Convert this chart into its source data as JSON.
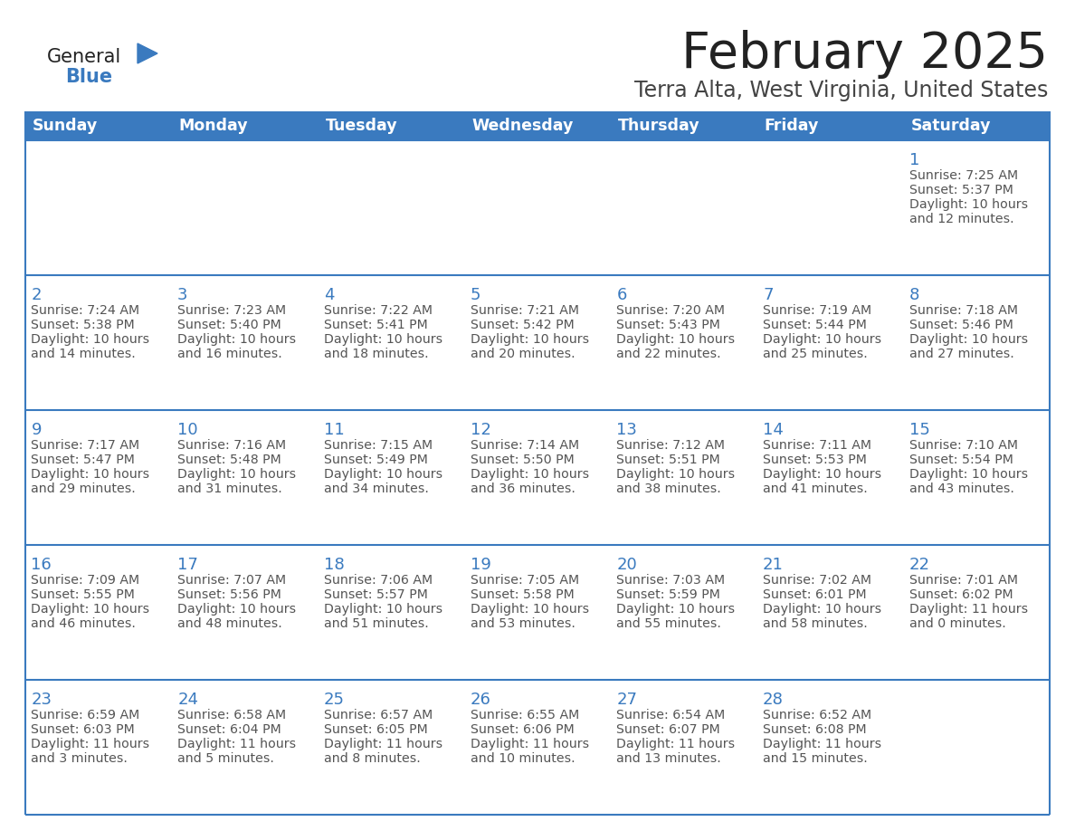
{
  "title": "February 2025",
  "subtitle": "Terra Alta, West Virginia, United States",
  "days_of_week": [
    "Sunday",
    "Monday",
    "Tuesday",
    "Wednesday",
    "Thursday",
    "Friday",
    "Saturday"
  ],
  "header_bg": "#3a7abf",
  "header_text": "#ffffff",
  "cell_bg": "#ffffff",
  "cell_border": "#3a7abf",
  "day_number_color": "#3a7abf",
  "info_text_color": "#555555",
  "title_color": "#222222",
  "subtitle_color": "#444444",
  "logo_general_color": "#222222",
  "logo_blue_color": "#3a7abf",
  "fig_width": 11.88,
  "fig_height": 9.18,
  "dpi": 100,
  "calendar_data": [
    [
      null,
      null,
      null,
      null,
      null,
      null,
      {
        "day": 1,
        "sunrise": "7:25 AM",
        "sunset": "5:37 PM",
        "daylight": "10 hours\nand 12 minutes."
      }
    ],
    [
      {
        "day": 2,
        "sunrise": "7:24 AM",
        "sunset": "5:38 PM",
        "daylight": "10 hours\nand 14 minutes."
      },
      {
        "day": 3,
        "sunrise": "7:23 AM",
        "sunset": "5:40 PM",
        "daylight": "10 hours\nand 16 minutes."
      },
      {
        "day": 4,
        "sunrise": "7:22 AM",
        "sunset": "5:41 PM",
        "daylight": "10 hours\nand 18 minutes."
      },
      {
        "day": 5,
        "sunrise": "7:21 AM",
        "sunset": "5:42 PM",
        "daylight": "10 hours\nand 20 minutes."
      },
      {
        "day": 6,
        "sunrise": "7:20 AM",
        "sunset": "5:43 PM",
        "daylight": "10 hours\nand 22 minutes."
      },
      {
        "day": 7,
        "sunrise": "7:19 AM",
        "sunset": "5:44 PM",
        "daylight": "10 hours\nand 25 minutes."
      },
      {
        "day": 8,
        "sunrise": "7:18 AM",
        "sunset": "5:46 PM",
        "daylight": "10 hours\nand 27 minutes."
      }
    ],
    [
      {
        "day": 9,
        "sunrise": "7:17 AM",
        "sunset": "5:47 PM",
        "daylight": "10 hours\nand 29 minutes."
      },
      {
        "day": 10,
        "sunrise": "7:16 AM",
        "sunset": "5:48 PM",
        "daylight": "10 hours\nand 31 minutes."
      },
      {
        "day": 11,
        "sunrise": "7:15 AM",
        "sunset": "5:49 PM",
        "daylight": "10 hours\nand 34 minutes."
      },
      {
        "day": 12,
        "sunrise": "7:14 AM",
        "sunset": "5:50 PM",
        "daylight": "10 hours\nand 36 minutes."
      },
      {
        "day": 13,
        "sunrise": "7:12 AM",
        "sunset": "5:51 PM",
        "daylight": "10 hours\nand 38 minutes."
      },
      {
        "day": 14,
        "sunrise": "7:11 AM",
        "sunset": "5:53 PM",
        "daylight": "10 hours\nand 41 minutes."
      },
      {
        "day": 15,
        "sunrise": "7:10 AM",
        "sunset": "5:54 PM",
        "daylight": "10 hours\nand 43 minutes."
      }
    ],
    [
      {
        "day": 16,
        "sunrise": "7:09 AM",
        "sunset": "5:55 PM",
        "daylight": "10 hours\nand 46 minutes."
      },
      {
        "day": 17,
        "sunrise": "7:07 AM",
        "sunset": "5:56 PM",
        "daylight": "10 hours\nand 48 minutes."
      },
      {
        "day": 18,
        "sunrise": "7:06 AM",
        "sunset": "5:57 PM",
        "daylight": "10 hours\nand 51 minutes."
      },
      {
        "day": 19,
        "sunrise": "7:05 AM",
        "sunset": "5:58 PM",
        "daylight": "10 hours\nand 53 minutes."
      },
      {
        "day": 20,
        "sunrise": "7:03 AM",
        "sunset": "5:59 PM",
        "daylight": "10 hours\nand 55 minutes."
      },
      {
        "day": 21,
        "sunrise": "7:02 AM",
        "sunset": "6:01 PM",
        "daylight": "10 hours\nand 58 minutes."
      },
      {
        "day": 22,
        "sunrise": "7:01 AM",
        "sunset": "6:02 PM",
        "daylight": "11 hours\nand 0 minutes."
      }
    ],
    [
      {
        "day": 23,
        "sunrise": "6:59 AM",
        "sunset": "6:03 PM",
        "daylight": "11 hours\nand 3 minutes."
      },
      {
        "day": 24,
        "sunrise": "6:58 AM",
        "sunset": "6:04 PM",
        "daylight": "11 hours\nand 5 minutes."
      },
      {
        "day": 25,
        "sunrise": "6:57 AM",
        "sunset": "6:05 PM",
        "daylight": "11 hours\nand 8 minutes."
      },
      {
        "day": 26,
        "sunrise": "6:55 AM",
        "sunset": "6:06 PM",
        "daylight": "11 hours\nand 10 minutes."
      },
      {
        "day": 27,
        "sunrise": "6:54 AM",
        "sunset": "6:07 PM",
        "daylight": "11 hours\nand 13 minutes."
      },
      {
        "day": 28,
        "sunrise": "6:52 AM",
        "sunset": "6:08 PM",
        "daylight": "11 hours\nand 15 minutes."
      },
      null
    ]
  ]
}
